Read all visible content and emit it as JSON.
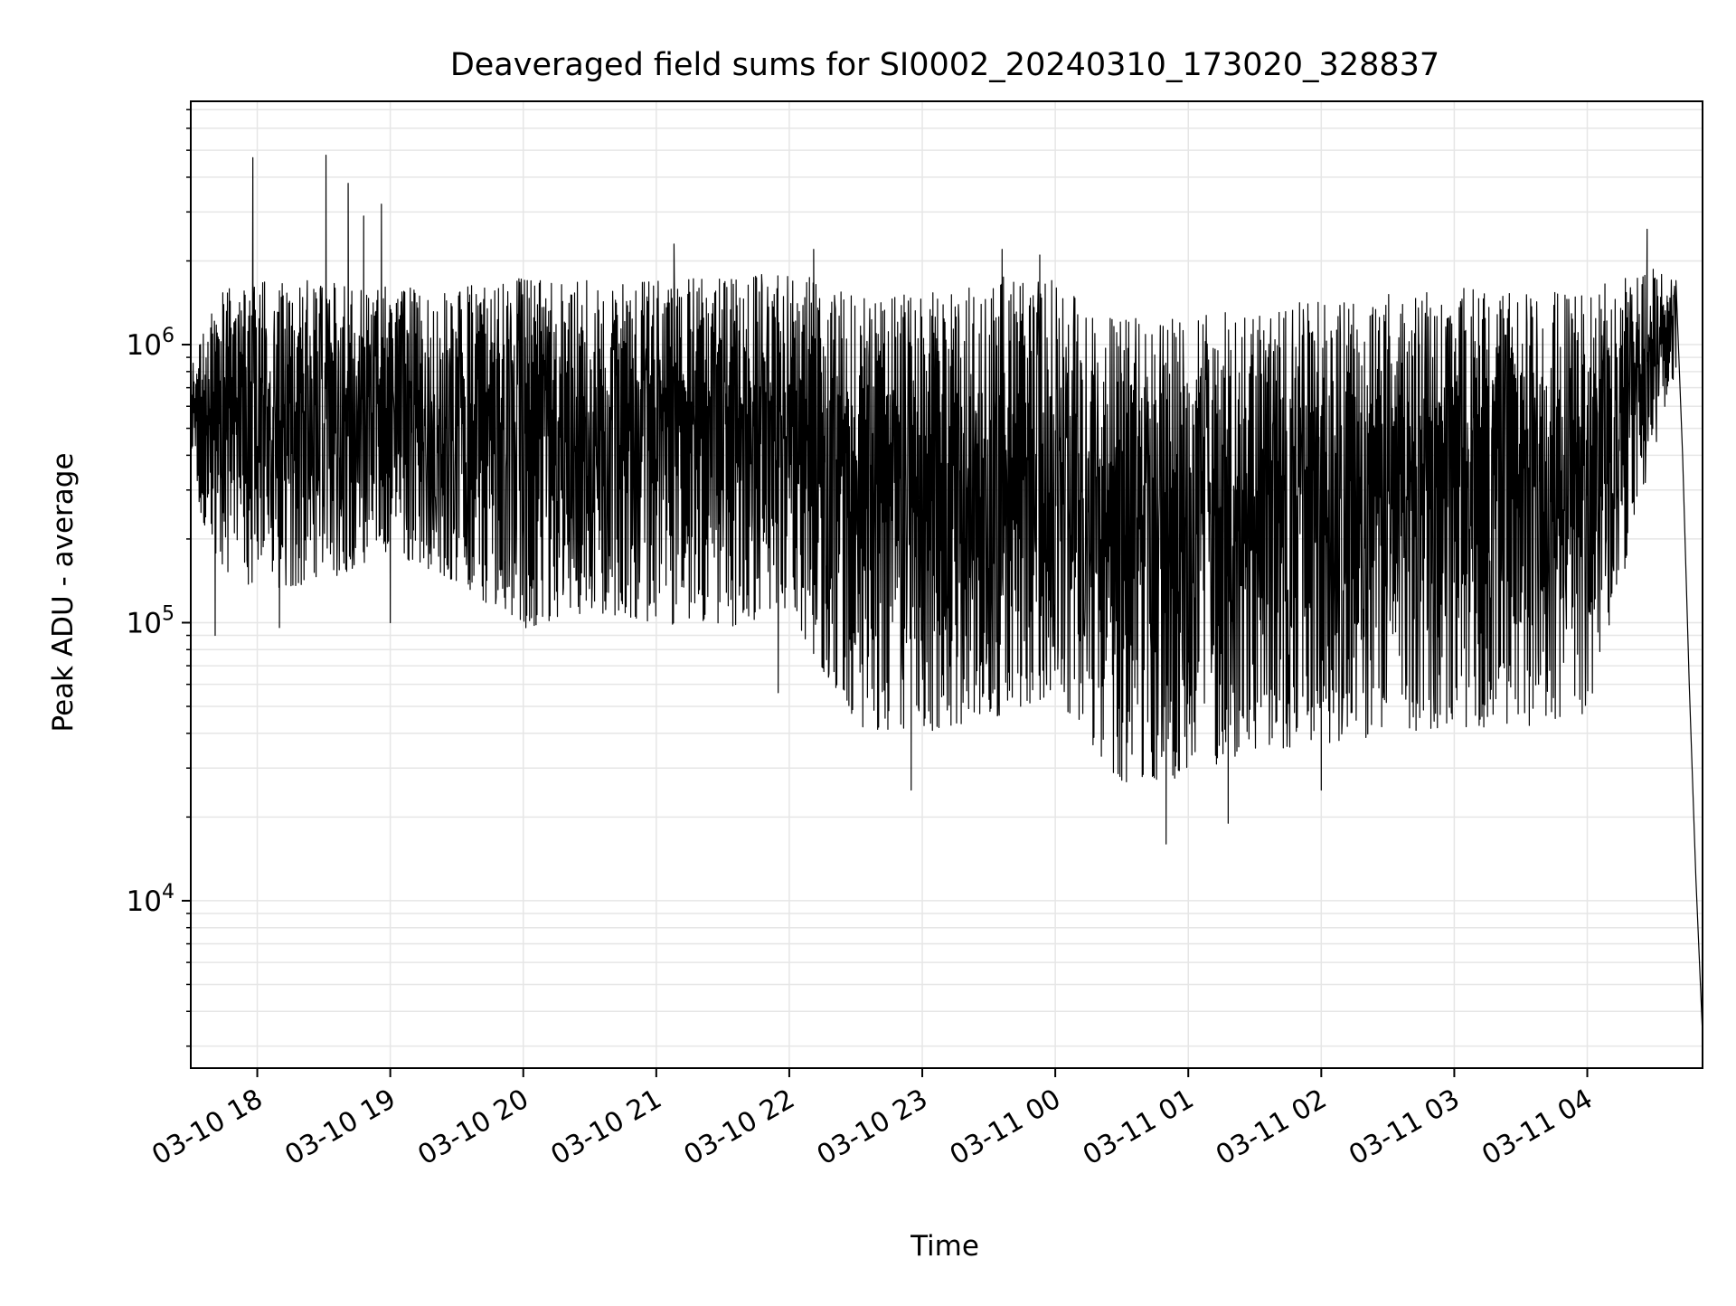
{
  "chart_data": {
    "type": "line",
    "title": "Deaveraged field sums for SI0002_20240310_173020_328837",
    "xlabel": "Time",
    "ylabel": "Peak ADU - average",
    "yscale": "log",
    "ylim": [
      2500,
      7500000
    ],
    "xlim": [
      "2024-03-10 17:30",
      "2024-03-11 04:52"
    ],
    "grid": true,
    "legend": "none",
    "line_color": "#000000",
    "grid_color": "#e6e6e6",
    "x_ticks": [
      {
        "t": "2024-03-10 18:00",
        "label": "03-10 18"
      },
      {
        "t": "2024-03-10 19:00",
        "label": "03-10 19"
      },
      {
        "t": "2024-03-10 20:00",
        "label": "03-10 20"
      },
      {
        "t": "2024-03-10 21:00",
        "label": "03-10 21"
      },
      {
        "t": "2024-03-10 22:00",
        "label": "03-10 22"
      },
      {
        "t": "2024-03-10 23:00",
        "label": "03-10 23"
      },
      {
        "t": "2024-03-11 00:00",
        "label": "03-11 00"
      },
      {
        "t": "2024-03-11 01:00",
        "label": "03-11 01"
      },
      {
        "t": "2024-03-11 02:00",
        "label": "03-11 02"
      },
      {
        "t": "2024-03-11 03:00",
        "label": "03-11 03"
      },
      {
        "t": "2024-03-11 04:00",
        "label": "03-11 04"
      }
    ],
    "y_ticks": [
      {
        "value": 10000,
        "base": "10",
        "exp": "4"
      },
      {
        "value": 100000,
        "base": "10",
        "exp": "5"
      },
      {
        "value": 1000000,
        "base": "10",
        "exp": "6"
      }
    ],
    "series": [
      {
        "time_start": "2024-03-10 17:30",
        "time_end": "2024-03-11 04:52",
        "envelope_upper": [
          [
            "2024-03-10 17:30",
            900000
          ],
          [
            "2024-03-10 17:45",
            1600000
          ],
          [
            "2024-03-10 18:00",
            1700000
          ],
          [
            "2024-03-10 18:30",
            1700000
          ],
          [
            "2024-03-10 19:00",
            1650000
          ],
          [
            "2024-03-10 19:30",
            1600000
          ],
          [
            "2024-03-10 20:00",
            1750000
          ],
          [
            "2024-03-10 20:30",
            1700000
          ],
          [
            "2024-03-10 21:00",
            1750000
          ],
          [
            "2024-03-10 21:30",
            1750000
          ],
          [
            "2024-03-10 22:00",
            1900000
          ],
          [
            "2024-03-10 22:30",
            1550000
          ],
          [
            "2024-03-10 23:00",
            1500000
          ],
          [
            "2024-03-10 23:30",
            1800000
          ],
          [
            "2024-03-11 00:00",
            1700000
          ],
          [
            "2024-03-11 00:30",
            1250000
          ],
          [
            "2024-03-11 01:00",
            1250000
          ],
          [
            "2024-03-11 01:30",
            1350000
          ],
          [
            "2024-03-11 02:00",
            1450000
          ],
          [
            "2024-03-11 02:30",
            1550000
          ],
          [
            "2024-03-11 03:00",
            1600000
          ],
          [
            "2024-03-11 03:30",
            1600000
          ],
          [
            "2024-03-11 04:00",
            1600000
          ],
          [
            "2024-03-11 04:30",
            1900000
          ],
          [
            "2024-03-11 04:40",
            1700000
          ]
        ],
        "envelope_lower": [
          [
            "2024-03-10 17:30",
            300000
          ],
          [
            "2024-03-10 17:45",
            150000
          ],
          [
            "2024-03-10 18:00",
            130000
          ],
          [
            "2024-03-10 18:30",
            140000
          ],
          [
            "2024-03-10 19:00",
            180000
          ],
          [
            "2024-03-10 19:30",
            140000
          ],
          [
            "2024-03-10 20:00",
            95000
          ],
          [
            "2024-03-10 20:30",
            110000
          ],
          [
            "2024-03-10 21:00",
            100000
          ],
          [
            "2024-03-10 21:30",
            95000
          ],
          [
            "2024-03-10 22:00",
            110000
          ],
          [
            "2024-03-10 22:30",
            42000
          ],
          [
            "2024-03-10 23:00",
            40000
          ],
          [
            "2024-03-10 23:30",
            45000
          ],
          [
            "2024-03-11 00:00",
            55000
          ],
          [
            "2024-03-11 00:30",
            26000
          ],
          [
            "2024-03-11 01:00",
            28000
          ],
          [
            "2024-03-11 01:30",
            35000
          ],
          [
            "2024-03-11 02:00",
            36000
          ],
          [
            "2024-03-11 02:30",
            40000
          ],
          [
            "2024-03-11 03:00",
            42000
          ],
          [
            "2024-03-11 03:30",
            42000
          ],
          [
            "2024-03-11 04:00",
            45000
          ],
          [
            "2024-03-11 04:30",
            400000
          ],
          [
            "2024-03-11 04:40",
            800000
          ]
        ],
        "spikes": [
          [
            "2024-03-10 17:58",
            4700000
          ],
          [
            "2024-03-10 18:31",
            4800000
          ],
          [
            "2024-03-10 18:41",
            3800000
          ],
          [
            "2024-03-10 18:48",
            2900000
          ],
          [
            "2024-03-10 18:56",
            3200000
          ],
          [
            "2024-03-10 21:08",
            2300000
          ],
          [
            "2024-03-10 22:11",
            2200000
          ],
          [
            "2024-03-10 23:36",
            2200000
          ],
          [
            "2024-03-10 23:53",
            2100000
          ],
          [
            "2024-03-11 04:27",
            2600000
          ]
        ],
        "dips": [
          [
            "2024-03-10 17:41",
            90000
          ],
          [
            "2024-03-10 18:10",
            96000
          ],
          [
            "2024-03-10 19:00",
            100000
          ],
          [
            "2024-03-10 21:55",
            56000
          ],
          [
            "2024-03-10 22:55",
            25000
          ],
          [
            "2024-03-11 00:50",
            16000
          ],
          [
            "2024-03-11 01:18",
            19000
          ],
          [
            "2024-03-11 02:00",
            25000
          ]
        ],
        "tail": [
          [
            "2024-03-11 04:40",
            1700000
          ],
          [
            "2024-03-11 04:43",
            400000
          ],
          [
            "2024-03-11 04:46",
            60000
          ],
          [
            "2024-03-11 04:49",
            12000
          ],
          [
            "2024-03-11 04:52",
            3300
          ]
        ]
      }
    ]
  }
}
